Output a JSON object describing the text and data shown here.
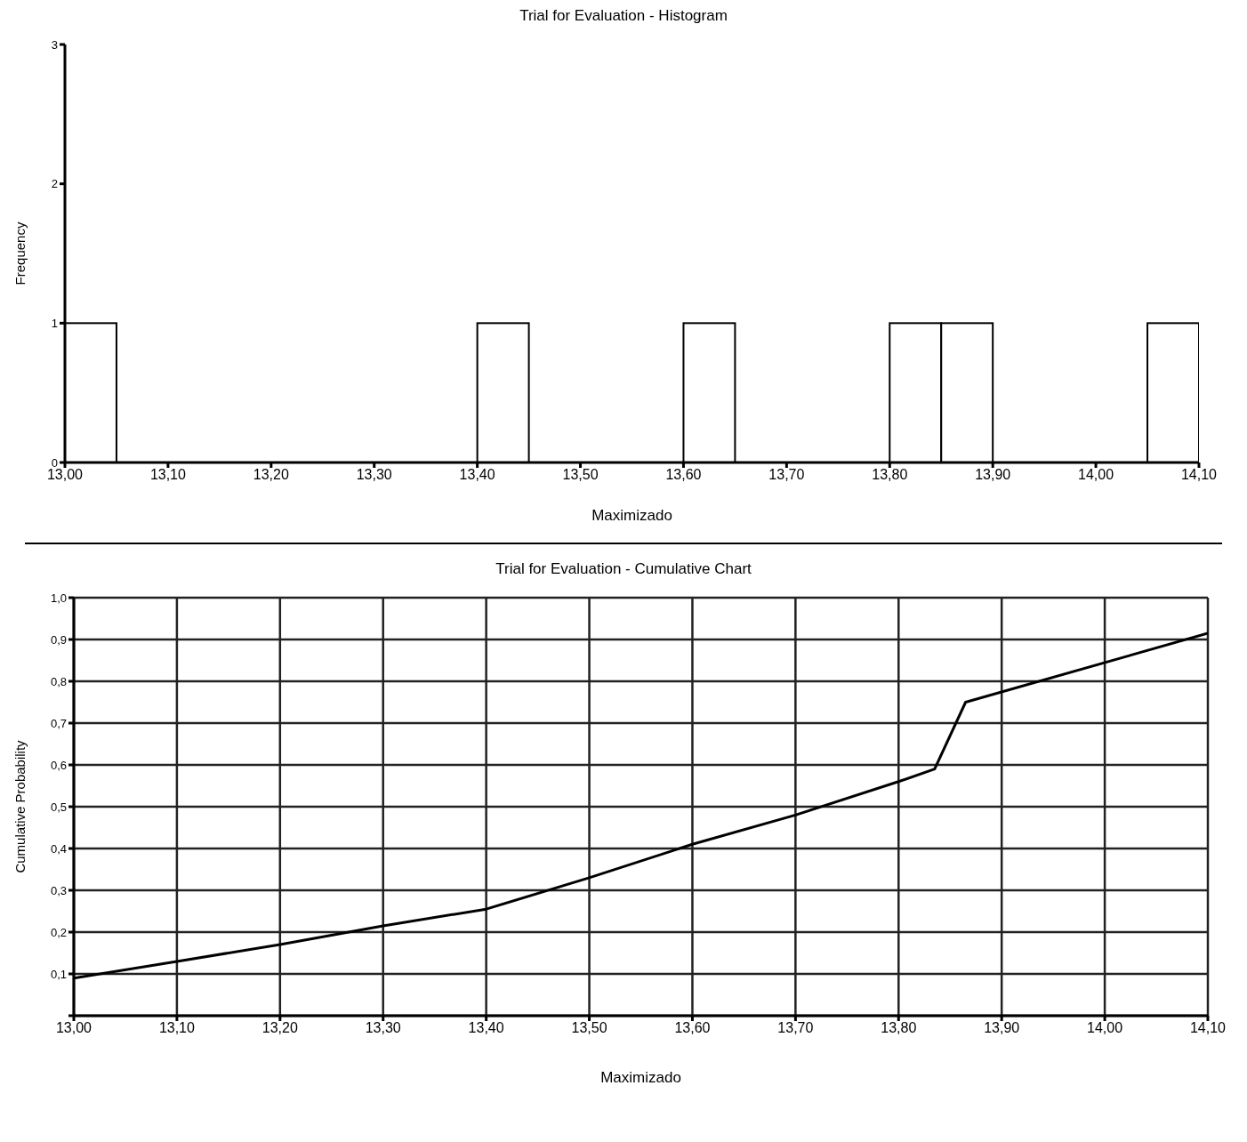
{
  "chart_data": [
    {
      "type": "histogram",
      "title": "Trial for Evaluation - Histogram",
      "xlabel": "Maximizado",
      "ylabel": "Frequency",
      "bins": [
        13.0,
        13.05,
        13.1,
        13.15,
        13.2,
        13.25,
        13.3,
        13.35,
        13.4,
        13.45,
        13.5,
        13.55,
        13.6,
        13.65,
        13.7,
        13.75,
        13.8,
        13.85,
        13.9,
        13.95,
        14.0,
        14.05,
        14.1
      ],
      "values": [
        1,
        0,
        0,
        0,
        0,
        0,
        0,
        0,
        1,
        0,
        0,
        0,
        1,
        0,
        0,
        0,
        1,
        1,
        0,
        0,
        0,
        1
      ],
      "color": "#ffffff",
      "xlim": [
        13.0,
        14.1
      ],
      "xticks": [
        {
          "value": 13.0,
          "label": "13,00"
        },
        {
          "value": 13.1,
          "label": "13,10"
        },
        {
          "value": 13.2,
          "label": "13,20"
        },
        {
          "value": 13.3,
          "label": "13,30"
        },
        {
          "value": 13.4,
          "label": "13,40"
        },
        {
          "value": 13.5,
          "label": "13,50"
        },
        {
          "value": 13.6,
          "label": "13,60"
        },
        {
          "value": 13.7,
          "label": "13,70"
        },
        {
          "value": 13.8,
          "label": "13,80"
        },
        {
          "value": 13.9,
          "label": "13,90"
        },
        {
          "value": 14.0,
          "label": "14,00"
        },
        {
          "value": 14.1,
          "label": "14,10"
        }
      ],
      "ylim": [
        0,
        3
      ],
      "yticks": [
        0,
        1,
        2,
        3
      ]
    },
    {
      "type": "line",
      "title": "Trial for Evaluation - Cumulative Chart",
      "xlabel": "Maximizado",
      "ylabel": "Cumulative Probability",
      "x": [
        13.0,
        13.1,
        13.2,
        13.3,
        13.4,
        13.5,
        13.6,
        13.7,
        13.8,
        13.835,
        13.865,
        14.1
      ],
      "values": [
        0.09,
        0.13,
        0.17,
        0.215,
        0.255,
        0.33,
        0.41,
        0.48,
        0.56,
        0.59,
        0.75,
        0.915
      ],
      "color": "#000000",
      "grid": true,
      "xlim": [
        13.0,
        14.1
      ],
      "xticks": [
        {
          "value": 13.0,
          "label": "13,00"
        },
        {
          "value": 13.1,
          "label": "13,10"
        },
        {
          "value": 13.2,
          "label": "13,20"
        },
        {
          "value": 13.3,
          "label": "13,30"
        },
        {
          "value": 13.4,
          "label": "13,40"
        },
        {
          "value": 13.5,
          "label": "13,50"
        },
        {
          "value": 13.6,
          "label": "13,60"
        },
        {
          "value": 13.7,
          "label": "13,70"
        },
        {
          "value": 13.8,
          "label": "13,80"
        },
        {
          "value": 13.9,
          "label": "13,90"
        },
        {
          "value": 14.0,
          "label": "14,00"
        },
        {
          "value": 14.1,
          "label": "14,10"
        }
      ],
      "ylim": [
        0,
        1
      ],
      "yticks": [
        {
          "value": 0,
          "label": null
        },
        {
          "value": 0.1,
          "label": "0,1"
        },
        {
          "value": 0.2,
          "label": "0,2"
        },
        {
          "value": 0.3,
          "label": "0,3"
        },
        {
          "value": 0.4,
          "label": "0,4"
        },
        {
          "value": 0.5,
          "label": "0,5"
        },
        {
          "value": 0.6,
          "label": "0,6"
        },
        {
          "value": 0.7,
          "label": "0,7"
        },
        {
          "value": 0.8,
          "label": "0,8"
        },
        {
          "value": 0.9,
          "label": "0,9"
        },
        {
          "value": 1.0,
          "label": "1,0"
        }
      ]
    }
  ]
}
